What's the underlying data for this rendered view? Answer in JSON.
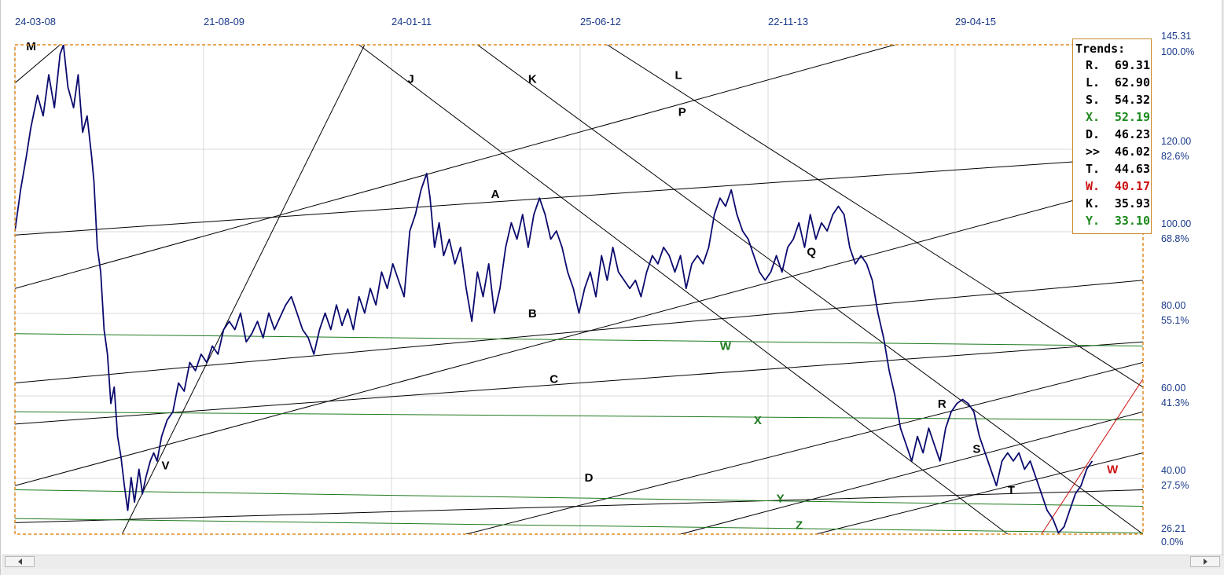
{
  "chart_data": {
    "type": "line",
    "x_dates": [
      "24-03-08",
      "21-08-09",
      "24-01-11",
      "25-06-12",
      "22-11-13",
      "29-04-15"
    ],
    "y_axis": [
      {
        "value": "145.31",
        "pct": "100.0%"
      },
      {
        "value": "120.00",
        "pct": "82.6%"
      },
      {
        "value": "100.00",
        "pct": "68.8%"
      },
      {
        "value": "80.00",
        "pct": "55.1%"
      },
      {
        "value": "60.00",
        "pct": "41.3%"
      },
      {
        "value": "40.00",
        "pct": "27.5%"
      },
      {
        "value": "26.21",
        "pct": "0.0%"
      }
    ],
    "grid": true,
    "series": [
      {
        "color": "#0a0a6e",
        "values": [
          [
            0.0,
            100
          ],
          [
            0.005,
            110
          ],
          [
            0.01,
            118
          ],
          [
            0.014,
            125
          ],
          [
            0.02,
            133
          ],
          [
            0.025,
            128
          ],
          [
            0.03,
            138
          ],
          [
            0.035,
            130
          ],
          [
            0.04,
            143
          ],
          [
            0.043,
            145.3
          ],
          [
            0.047,
            135
          ],
          [
            0.052,
            130
          ],
          [
            0.056,
            138
          ],
          [
            0.06,
            124
          ],
          [
            0.064,
            128
          ],
          [
            0.068,
            118
          ],
          [
            0.07,
            112
          ],
          [
            0.073,
            96
          ],
          [
            0.076,
            90
          ],
          [
            0.079,
            76
          ],
          [
            0.082,
            70
          ],
          [
            0.085,
            58
          ],
          [
            0.088,
            62
          ],
          [
            0.091,
            50
          ],
          [
            0.094,
            45
          ],
          [
            0.097,
            38
          ],
          [
            0.1,
            32
          ],
          [
            0.103,
            40
          ],
          [
            0.106,
            34
          ],
          [
            0.11,
            42
          ],
          [
            0.113,
            36
          ],
          [
            0.116,
            40
          ],
          [
            0.12,
            44
          ],
          [
            0.123,
            46
          ],
          [
            0.126,
            44
          ],
          [
            0.13,
            50
          ],
          [
            0.135,
            54
          ],
          [
            0.14,
            56
          ],
          [
            0.145,
            63
          ],
          [
            0.15,
            61
          ],
          [
            0.155,
            68
          ],
          [
            0.16,
            66
          ],
          [
            0.165,
            70
          ],
          [
            0.17,
            68
          ],
          [
            0.175,
            72
          ],
          [
            0.18,
            70
          ],
          [
            0.185,
            76
          ],
          [
            0.19,
            78
          ],
          [
            0.195,
            76
          ],
          [
            0.2,
            80
          ],
          [
            0.205,
            73
          ],
          [
            0.21,
            75
          ],
          [
            0.215,
            78
          ],
          [
            0.22,
            74
          ],
          [
            0.225,
            80
          ],
          [
            0.23,
            76
          ],
          [
            0.235,
            79
          ],
          [
            0.24,
            82
          ],
          [
            0.245,
            84
          ],
          [
            0.25,
            80
          ],
          [
            0.255,
            76
          ],
          [
            0.26,
            74
          ],
          [
            0.265,
            70
          ],
          [
            0.27,
            76
          ],
          [
            0.275,
            80
          ],
          [
            0.28,
            76
          ],
          [
            0.285,
            82
          ],
          [
            0.29,
            77
          ],
          [
            0.295,
            81
          ],
          [
            0.3,
            76
          ],
          [
            0.305,
            84
          ],
          [
            0.31,
            80
          ],
          [
            0.315,
            86
          ],
          [
            0.32,
            82
          ],
          [
            0.325,
            90
          ],
          [
            0.33,
            86
          ],
          [
            0.335,
            92
          ],
          [
            0.34,
            88
          ],
          [
            0.345,
            84
          ],
          [
            0.35,
            100
          ],
          [
            0.355,
            104
          ],
          [
            0.36,
            110
          ],
          [
            0.365,
            114
          ],
          [
            0.368,
            108
          ],
          [
            0.372,
            96
          ],
          [
            0.376,
            102
          ],
          [
            0.38,
            94
          ],
          [
            0.385,
            98
          ],
          [
            0.39,
            92
          ],
          [
            0.395,
            96
          ],
          [
            0.4,
            86
          ],
          [
            0.405,
            78
          ],
          [
            0.41,
            90
          ],
          [
            0.415,
            84
          ],
          [
            0.42,
            92
          ],
          [
            0.425,
            80
          ],
          [
            0.43,
            86
          ],
          [
            0.435,
            96
          ],
          [
            0.44,
            102
          ],
          [
            0.445,
            98
          ],
          [
            0.45,
            104
          ],
          [
            0.455,
            96
          ],
          [
            0.46,
            104
          ],
          [
            0.465,
            108
          ],
          [
            0.47,
            104
          ],
          [
            0.475,
            98
          ],
          [
            0.48,
            100
          ],
          [
            0.485,
            96
          ],
          [
            0.49,
            90
          ],
          [
            0.495,
            86
          ],
          [
            0.5,
            80
          ],
          [
            0.505,
            86
          ],
          [
            0.51,
            90
          ],
          [
            0.515,
            84
          ],
          [
            0.52,
            94
          ],
          [
            0.525,
            88
          ],
          [
            0.53,
            96
          ],
          [
            0.535,
            90
          ],
          [
            0.54,
            88
          ],
          [
            0.545,
            86
          ],
          [
            0.55,
            88
          ],
          [
            0.555,
            84
          ],
          [
            0.56,
            90
          ],
          [
            0.565,
            94
          ],
          [
            0.57,
            92
          ],
          [
            0.575,
            96
          ],
          [
            0.58,
            94
          ],
          [
            0.585,
            90
          ],
          [
            0.59,
            94
          ],
          [
            0.595,
            86
          ],
          [
            0.6,
            92
          ],
          [
            0.605,
            94
          ],
          [
            0.61,
            92
          ],
          [
            0.615,
            96
          ],
          [
            0.62,
            104
          ],
          [
            0.625,
            108
          ],
          [
            0.63,
            106
          ],
          [
            0.635,
            110
          ],
          [
            0.64,
            104
          ],
          [
            0.645,
            100
          ],
          [
            0.65,
            98
          ],
          [
            0.655,
            94
          ],
          [
            0.66,
            90
          ],
          [
            0.665,
            88
          ],
          [
            0.67,
            90
          ],
          [
            0.675,
            94
          ],
          [
            0.68,
            90
          ],
          [
            0.685,
            96
          ],
          [
            0.69,
            98
          ],
          [
            0.695,
            102
          ],
          [
            0.7,
            96
          ],
          [
            0.705,
            104
          ],
          [
            0.71,
            98
          ],
          [
            0.715,
            102
          ],
          [
            0.72,
            100
          ],
          [
            0.725,
            104
          ],
          [
            0.73,
            106
          ],
          [
            0.735,
            104
          ],
          [
            0.74,
            96
          ],
          [
            0.745,
            92
          ],
          [
            0.75,
            94
          ],
          [
            0.755,
            92
          ],
          [
            0.76,
            88
          ],
          [
            0.765,
            80
          ],
          [
            0.77,
            74
          ],
          [
            0.775,
            66
          ],
          [
            0.78,
            60
          ],
          [
            0.785,
            52
          ],
          [
            0.79,
            48
          ],
          [
            0.795,
            44
          ],
          [
            0.8,
            50
          ],
          [
            0.805,
            46
          ],
          [
            0.81,
            52
          ],
          [
            0.815,
            48
          ],
          [
            0.82,
            44
          ],
          [
            0.825,
            52
          ],
          [
            0.83,
            56
          ],
          [
            0.835,
            58
          ],
          [
            0.84,
            59
          ],
          [
            0.845,
            58
          ],
          [
            0.85,
            56
          ],
          [
            0.855,
            50
          ],
          [
            0.86,
            46
          ],
          [
            0.865,
            42
          ],
          [
            0.87,
            38
          ],
          [
            0.875,
            44
          ],
          [
            0.88,
            46
          ],
          [
            0.885,
            44
          ],
          [
            0.89,
            46
          ],
          [
            0.895,
            42
          ],
          [
            0.9,
            44
          ],
          [
            0.905,
            40
          ],
          [
            0.91,
            36
          ],
          [
            0.915,
            32
          ],
          [
            0.92,
            30
          ],
          [
            0.925,
            26.5
          ],
          [
            0.93,
            28
          ],
          [
            0.935,
            32
          ],
          [
            0.94,
            36
          ],
          [
            0.945,
            38
          ],
          [
            0.95,
            42
          ],
          [
            0.955,
            44
          ]
        ]
      }
    ],
    "trend_lines": [
      {
        "label": "M",
        "color": "#000000",
        "x1": 0.0,
        "y1": 136,
        "x2": 0.04,
        "y2": 145.31
      },
      {
        "label": "J",
        "color": "#000000",
        "x1": 0.095,
        "y1": 26.21,
        "x2": 0.31,
        "y2": 145.31
      },
      {
        "label": "K",
        "color": "#000000",
        "x1": 0.305,
        "y1": 145.31,
        "x2": 0.88,
        "y2": 26.21
      },
      {
        "label": "L",
        "color": "#000000",
        "x1": 0.41,
        "y1": 145.31,
        "x2": 1.0,
        "y2": 26.21
      },
      {
        "label": "P",
        "color": "#000000",
        "x1": 0.525,
        "y1": 145.31,
        "x2": 1.0,
        "y2": 62.0
      },
      {
        "label": "A",
        "color": "#000000",
        "x1": 0.0,
        "y1": 99,
        "x2": 1.0,
        "y2": 118
      },
      {
        "label": "B",
        "color": "#000000",
        "x1": 0.0,
        "y1": 63,
        "x2": 1.0,
        "y2": 88
      },
      {
        "label": "C",
        "color": "#000000",
        "x1": 0.0,
        "y1": 53,
        "x2": 1.0,
        "y2": 73
      },
      {
        "label": "D",
        "color": "#000000",
        "x1": 0.0,
        "y1": 29,
        "x2": 1.0,
        "y2": 37
      },
      {
        "label": "V",
        "color": "#000000",
        "x1": 0.0,
        "y1": 38,
        "x2": 1.0,
        "y2": 112
      },
      {
        "label": "Q",
        "color": "#000000",
        "x1": 0.0,
        "y1": 86,
        "x2": 0.78,
        "y2": 145.31
      },
      {
        "label": "R",
        "color": "#000000",
        "x1": 0.4,
        "y1": 26.21,
        "x2": 1.0,
        "y2": 68
      },
      {
        "label": "S",
        "color": "#000000",
        "x1": 0.59,
        "y1": 26.21,
        "x2": 1.0,
        "y2": 56
      },
      {
        "label": "T",
        "color": "#000000",
        "x1": 0.71,
        "y1": 26.21,
        "x2": 1.0,
        "y2": 46
      },
      {
        "label": "W",
        "color": "#1e7a1e",
        "x1": 0.0,
        "y1": 75,
        "x2": 1.0,
        "y2": 72
      },
      {
        "label": "X",
        "color": "#1e7a1e",
        "x1": 0.0,
        "y1": 56,
        "x2": 1.0,
        "y2": 54
      },
      {
        "label": "Y",
        "color": "#1e7a1e",
        "x1": 0.0,
        "y1": 37,
        "x2": 1.0,
        "y2": 33
      },
      {
        "label": "Z",
        "color": "#1e7a1e",
        "x1": 0.0,
        "y1": 30,
        "x2": 1.0,
        "y2": 26.5
      },
      {
        "label": "W",
        "color": "#cc1111",
        "x1": 0.91,
        "y1": 26.21,
        "x2": 1.0,
        "y2": 64
      }
    ],
    "trend_labels": [
      {
        "text": "M",
        "x": 0.01,
        "y": 144,
        "color": "#000000"
      },
      {
        "text": "J",
        "x": 0.348,
        "y": 136,
        "color": "#000000"
      },
      {
        "text": "K",
        "x": 0.455,
        "y": 136,
        "color": "#000000"
      },
      {
        "text": "L",
        "x": 0.585,
        "y": 137,
        "color": "#000000"
      },
      {
        "text": "P",
        "x": 0.588,
        "y": 128,
        "color": "#000000"
      },
      {
        "text": "A",
        "x": 0.422,
        "y": 108,
        "color": "#000000"
      },
      {
        "text": "B",
        "x": 0.455,
        "y": 79,
        "color": "#000000"
      },
      {
        "text": "C",
        "x": 0.474,
        "y": 63,
        "color": "#000000"
      },
      {
        "text": "D",
        "x": 0.505,
        "y": 39,
        "color": "#000000"
      },
      {
        "text": "V",
        "x": 0.13,
        "y": 42,
        "color": "#000000"
      },
      {
        "text": "Q",
        "x": 0.702,
        "y": 94,
        "color": "#000000"
      },
      {
        "text": "R",
        "x": 0.818,
        "y": 57,
        "color": "#000000"
      },
      {
        "text": "S",
        "x": 0.849,
        "y": 46,
        "color": "#000000"
      },
      {
        "text": "T",
        "x": 0.88,
        "y": 36,
        "color": "#000000"
      },
      {
        "text": "W",
        "x": 0.625,
        "y": 71,
        "color": "#1e7a1e"
      },
      {
        "text": "X",
        "x": 0.655,
        "y": 53,
        "color": "#1e7a1e"
      },
      {
        "text": "Y",
        "x": 0.675,
        "y": 34,
        "color": "#1e7a1e"
      },
      {
        "text": "Z",
        "x": 0.692,
        "y": 27.5,
        "color": "#1e7a1e"
      },
      {
        "text": "W",
        "x": 0.968,
        "y": 41,
        "color": "#cc1111"
      }
    ]
  },
  "trends_panel": {
    "title": "Trends:",
    "rows": [
      {
        "name": "R.",
        "value": "69.31",
        "color": "#000000"
      },
      {
        "name": "L.",
        "value": "62.90",
        "color": "#000000"
      },
      {
        "name": "S.",
        "value": "54.32",
        "color": "#000000"
      },
      {
        "name": "X.",
        "value": "52.19",
        "color": "#1e8a1e"
      },
      {
        "name": "D.",
        "value": "46.23",
        "color": "#000000"
      },
      {
        "name": ">>",
        "value": "46.02",
        "color": "#000000"
      },
      {
        "name": "T.",
        "value": "44.63",
        "color": "#000000"
      },
      {
        "name": "W.",
        "value": "40.17",
        "color": "#cc1111"
      },
      {
        "name": "K.",
        "value": "35.93",
        "color": "#000000"
      },
      {
        "name": "Y.",
        "value": "33.10",
        "color": "#1e8a1e"
      }
    ]
  },
  "colors": {
    "price": "#0a0a6e",
    "frame": "#e08a1e",
    "axis_text": "#1a3a8a",
    "grid": "#d8d8d8"
  },
  "scrollbar": {
    "left_icon": "arrow-left-icon",
    "right_icon": "arrow-right-icon"
  }
}
